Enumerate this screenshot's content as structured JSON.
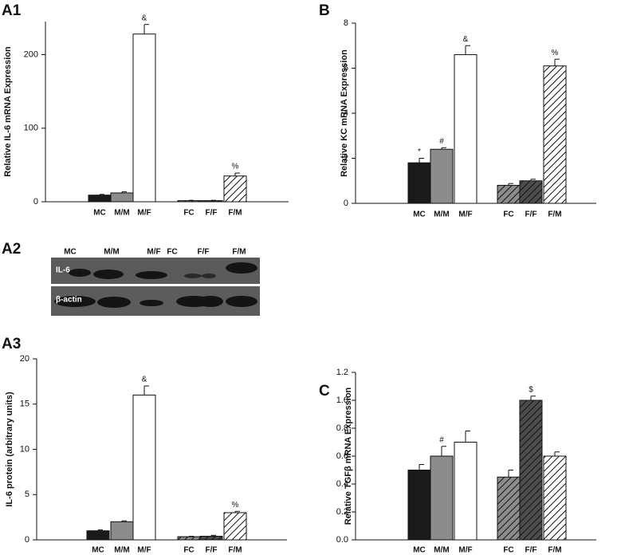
{
  "chart_data": [
    {
      "type": "bar",
      "title": "A1",
      "ylabel": "Relative IL-6 mRNA Expression",
      "categories": [
        "MC",
        "M/M",
        "M/F",
        "FC",
        "F/F",
        "F/M"
      ],
      "values": [
        9,
        12,
        228,
        1.5,
        1.5,
        35
      ],
      "errors": [
        1,
        1.5,
        13,
        0.5,
        0.5,
        4
      ],
      "annotations": [
        null,
        null,
        "&",
        null,
        null,
        "%"
      ],
      "colors": [
        "#1a1a1a",
        "#8c8c8c",
        "#ffffff",
        "#8c8c8c",
        "#4d4d4d",
        "#ffffff"
      ],
      "hatched": [
        false,
        false,
        false,
        true,
        true,
        true
      ],
      "ylim": [
        0,
        245
      ],
      "yticks": [
        0,
        100,
        200
      ]
    },
    {
      "type": "bar",
      "title": "B",
      "ylabel": "Relative KC mRNA Expression",
      "categories": [
        "MC",
        "M/M",
        "M/F",
        "FC",
        "F/F",
        "F/M"
      ],
      "values": [
        1.8,
        2.4,
        6.6,
        0.8,
        1.0,
        6.1
      ],
      "errors": [
        0.2,
        0.07,
        0.4,
        0.08,
        0.07,
        0.3
      ],
      "annotations": [
        "*",
        "#",
        "&",
        null,
        null,
        "%"
      ],
      "colors": [
        "#1a1a1a",
        "#8c8c8c",
        "#ffffff",
        "#8c8c8c",
        "#4d4d4d",
        "#ffffff"
      ],
      "hatched": [
        false,
        false,
        false,
        true,
        true,
        true
      ],
      "ylim": [
        0,
        8
      ],
      "yticks": [
        0,
        2,
        4,
        6,
        8
      ]
    },
    {
      "type": "bar",
      "title": "A3",
      "ylabel": "IL-6  protein (arbitrary units)",
      "categories": [
        "MC",
        "M/M",
        "M/F",
        "FC",
        "F/F",
        "F/M"
      ],
      "values": [
        1.0,
        2.0,
        16,
        0.35,
        0.4,
        3.0
      ],
      "errors": [
        0.1,
        0.1,
        1,
        0.05,
        0.1,
        0.15
      ],
      "annotations": [
        null,
        null,
        "&",
        null,
        null,
        "%"
      ],
      "colors": [
        "#1a1a1a",
        "#8c8c8c",
        "#ffffff",
        "#8c8c8c",
        "#4d4d4d",
        "#ffffff"
      ],
      "hatched": [
        false,
        false,
        false,
        true,
        true,
        true
      ],
      "ylim": [
        0,
        20
      ],
      "yticks": [
        0,
        5,
        10,
        15,
        20
      ]
    },
    {
      "type": "bar",
      "title": "C",
      "ylabel": "Relative TGFβ mRNA Expression",
      "categories": [
        "MC",
        "M/M",
        "M/F",
        "FC",
        "F/F",
        "F/M"
      ],
      "values": [
        0.5,
        0.6,
        0.7,
        0.45,
        1.0,
        0.6
      ],
      "errors": [
        0.04,
        0.07,
        0.08,
        0.05,
        0.03,
        0.03
      ],
      "annotations": [
        null,
        "#",
        null,
        null,
        "$",
        null
      ],
      "colors": [
        "#1a1a1a",
        "#8c8c8c",
        "#ffffff",
        "#8c8c8c",
        "#4d4d4d",
        "#ffffff"
      ],
      "hatched": [
        false,
        false,
        false,
        true,
        true,
        true
      ],
      "ylim": [
        0,
        1.2
      ],
      "yticks": [
        {
          "value": 0,
          "label": "0.0"
        },
        0.2,
        0.4,
        0.6,
        0.8,
        {
          "value": 1,
          "label": "1.0"
        },
        1.2
      ]
    }
  ],
  "blot": {
    "label": "A2",
    "lanes": [
      "MC",
      "M/M",
      "M/F",
      "FC",
      "F/F",
      "F/M"
    ],
    "rows": [
      "IL-6",
      "β-actin"
    ]
  }
}
